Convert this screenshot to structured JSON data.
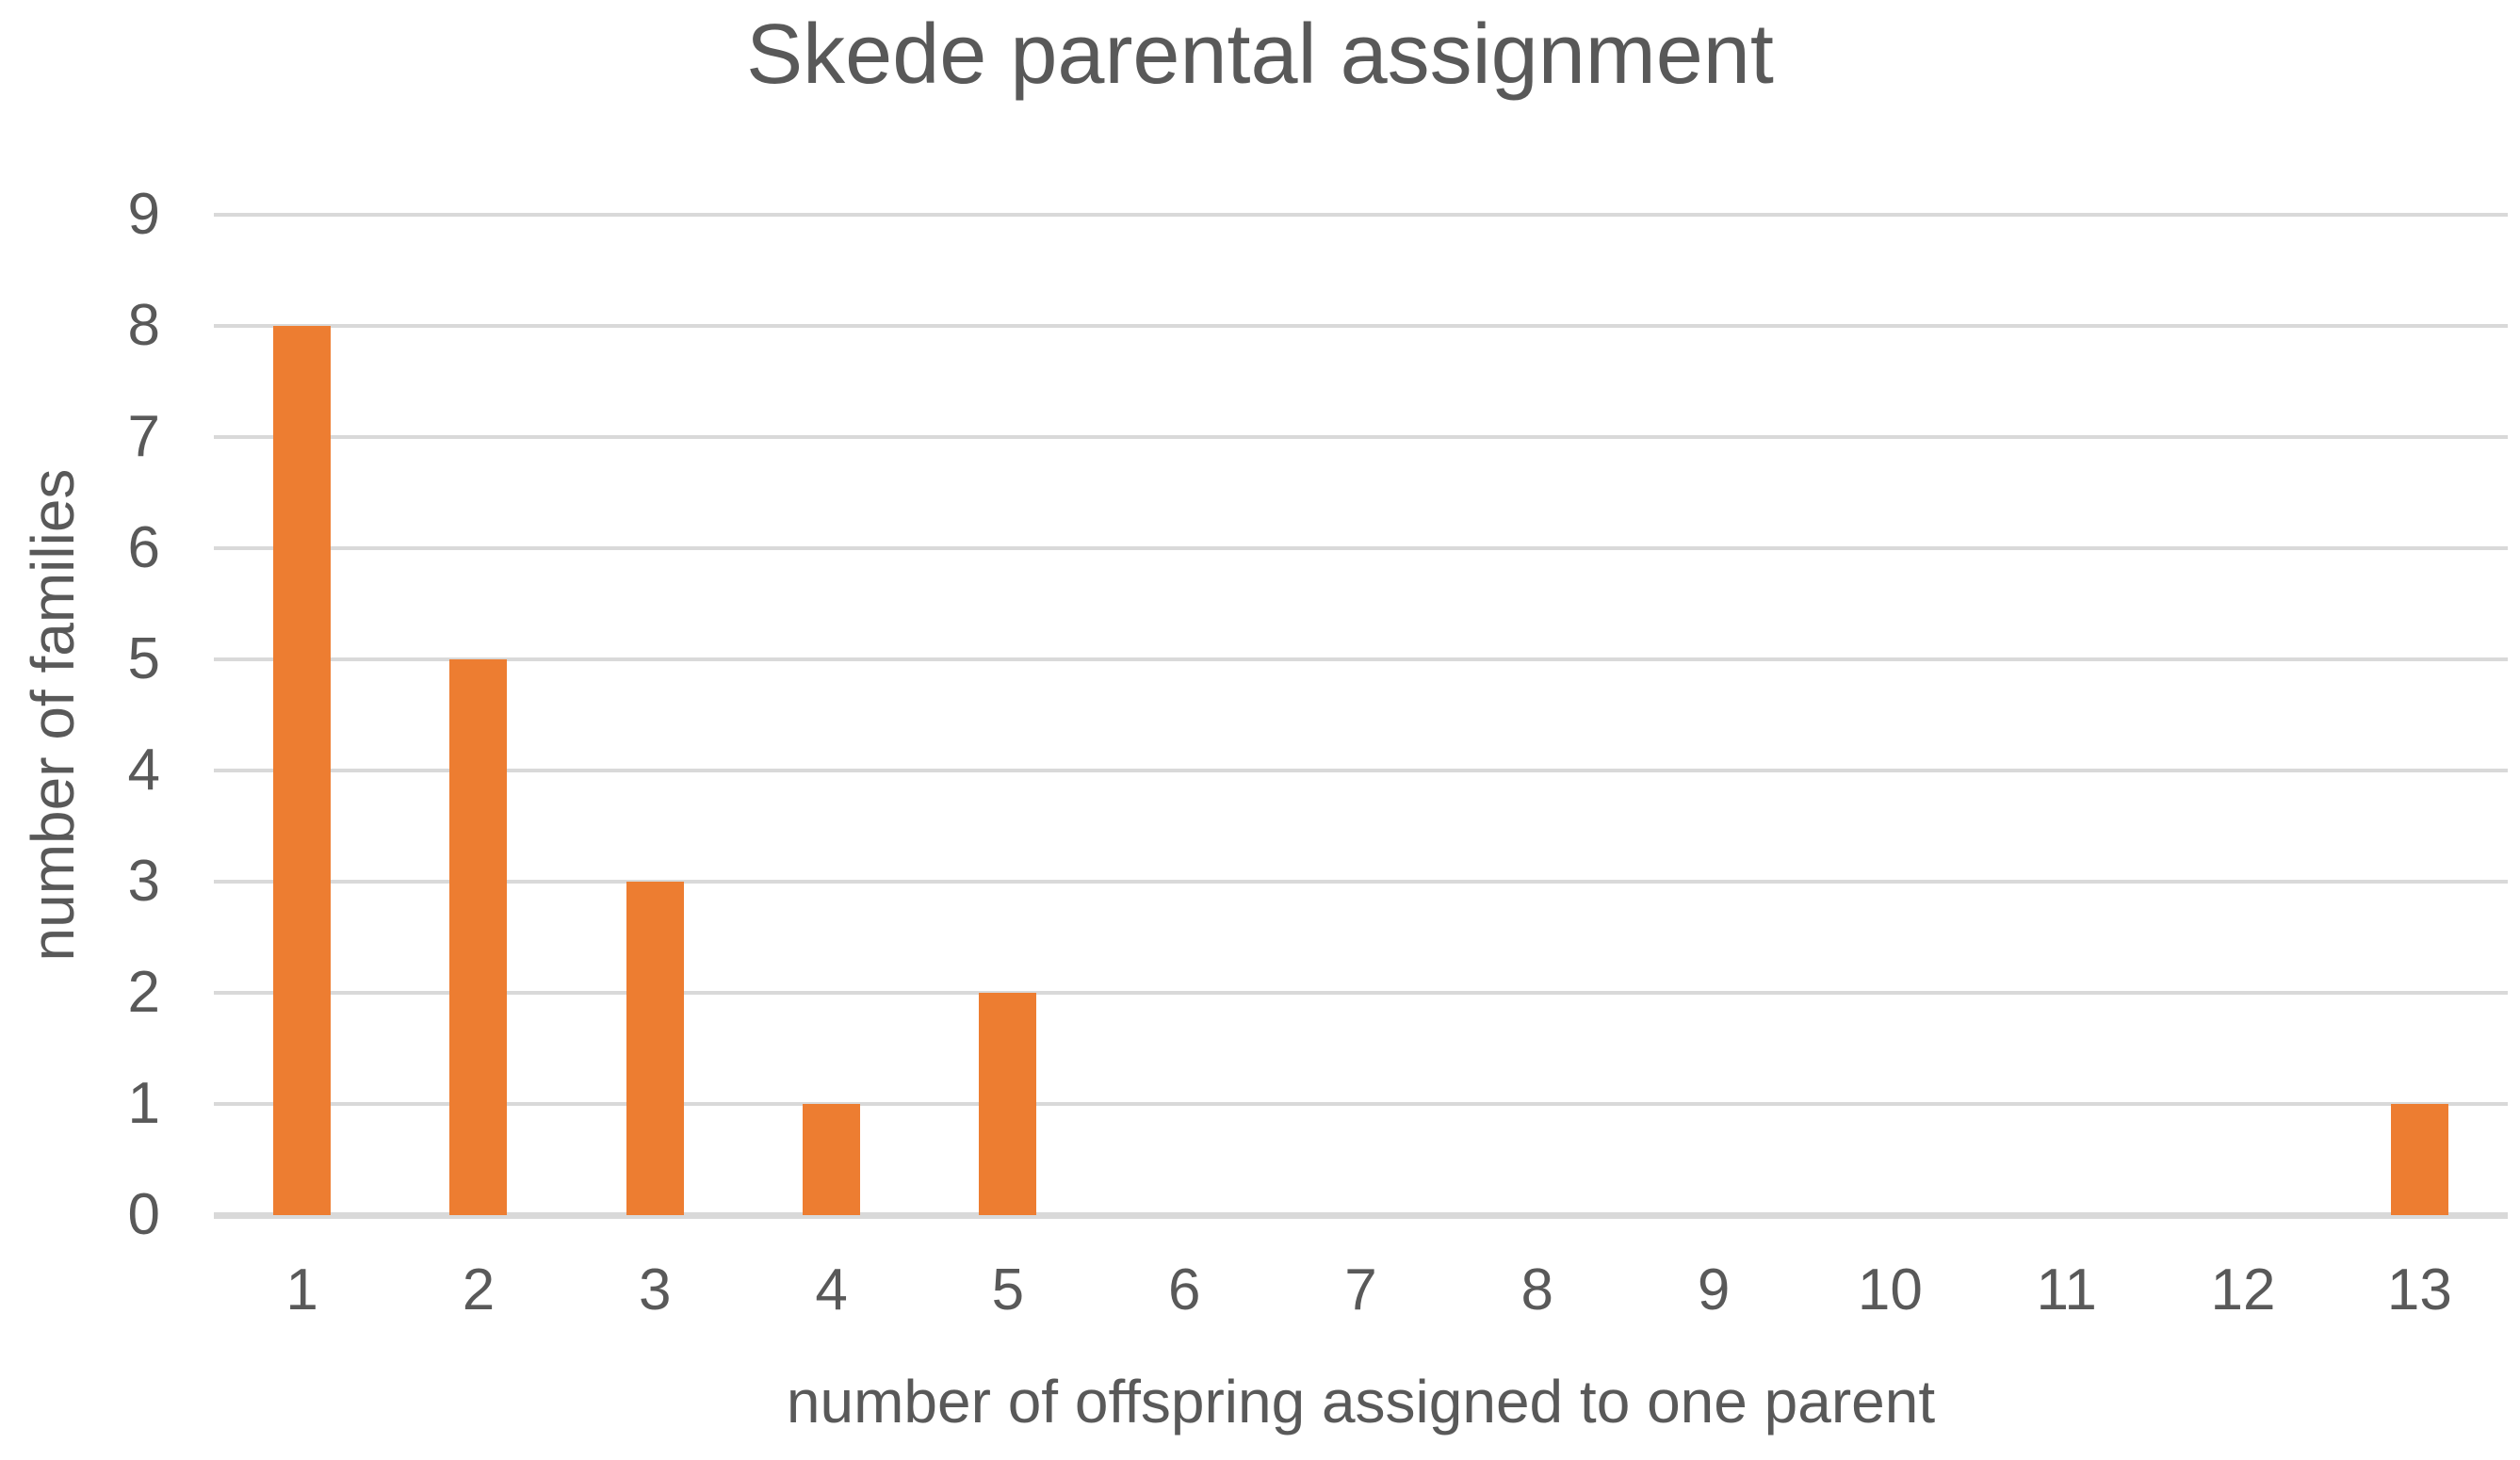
{
  "chart_data": {
    "type": "bar",
    "title": "Skede parental assignment",
    "xlabel": "number of offspring assigned to one parent",
    "ylabel": "number of families",
    "categories": [
      "1",
      "2",
      "3",
      "4",
      "5",
      "6",
      "7",
      "8",
      "9",
      "10",
      "11",
      "12",
      "13"
    ],
    "values": [
      8,
      5,
      3,
      1,
      2,
      0,
      0,
      0,
      0,
      0,
      0,
      0,
      1
    ],
    "ylim": [
      0,
      9
    ],
    "ytick_step": 1,
    "yticks": [
      "0",
      "1",
      "2",
      "3",
      "4",
      "5",
      "6",
      "7",
      "8",
      "9"
    ],
    "grid": "horizontal",
    "legend_position": "none",
    "colors": {
      "bar": "#ED7D31",
      "gridline": "#D9D9D9",
      "axis_line": "#D9D9D9",
      "text": "#595959",
      "background": "#FFFFFF"
    }
  }
}
